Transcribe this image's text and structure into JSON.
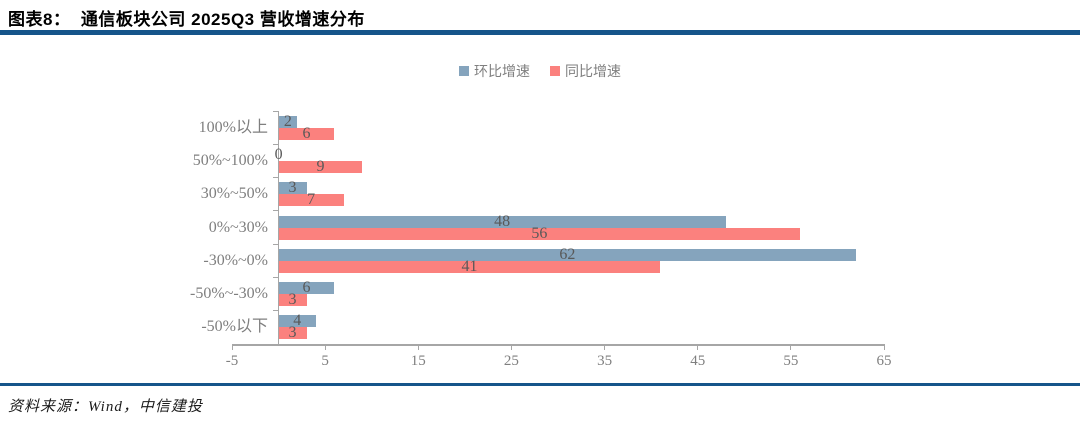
{
  "title": "图表8：  通信板块公司 2025Q3 营收增速分布",
  "source": "资料来源：Wind，中信建投",
  "colors": {
    "accent_rule": "#15558a",
    "qoq_blue": "#85a4bd",
    "yoy_red": "#fb817e",
    "axis_gray": "#a6a6a6",
    "value_label": "#595959",
    "axis_label": "#7f7f7f"
  },
  "legend": [
    {
      "name": "环比增速",
      "color": "#85a4bd"
    },
    {
      "name": "同比增速",
      "color": "#fb817e"
    }
  ],
  "chart_data": {
    "type": "bar",
    "orientation": "horizontal",
    "title": "通信板块公司 2025Q3 营收增速分布",
    "categories": [
      "100%以上",
      "50%~100%",
      "30%~50%",
      "0%~30%",
      "-30%~0%",
      "-50%~-30%",
      "-50%以下"
    ],
    "series": [
      {
        "name": "环比增速",
        "color": "#85a4bd",
        "values": [
          2,
          0,
          3,
          48,
          62,
          6,
          4
        ]
      },
      {
        "name": "同比增速",
        "color": "#fb817e",
        "values": [
          6,
          9,
          7,
          56,
          41,
          3,
          3
        ]
      }
    ],
    "xlim": [
      -5,
      65
    ],
    "xticks": [
      -5,
      5,
      15,
      25,
      35,
      45,
      55,
      65
    ],
    "grid": false,
    "legend_position": "top-center",
    "data_labels": true
  }
}
